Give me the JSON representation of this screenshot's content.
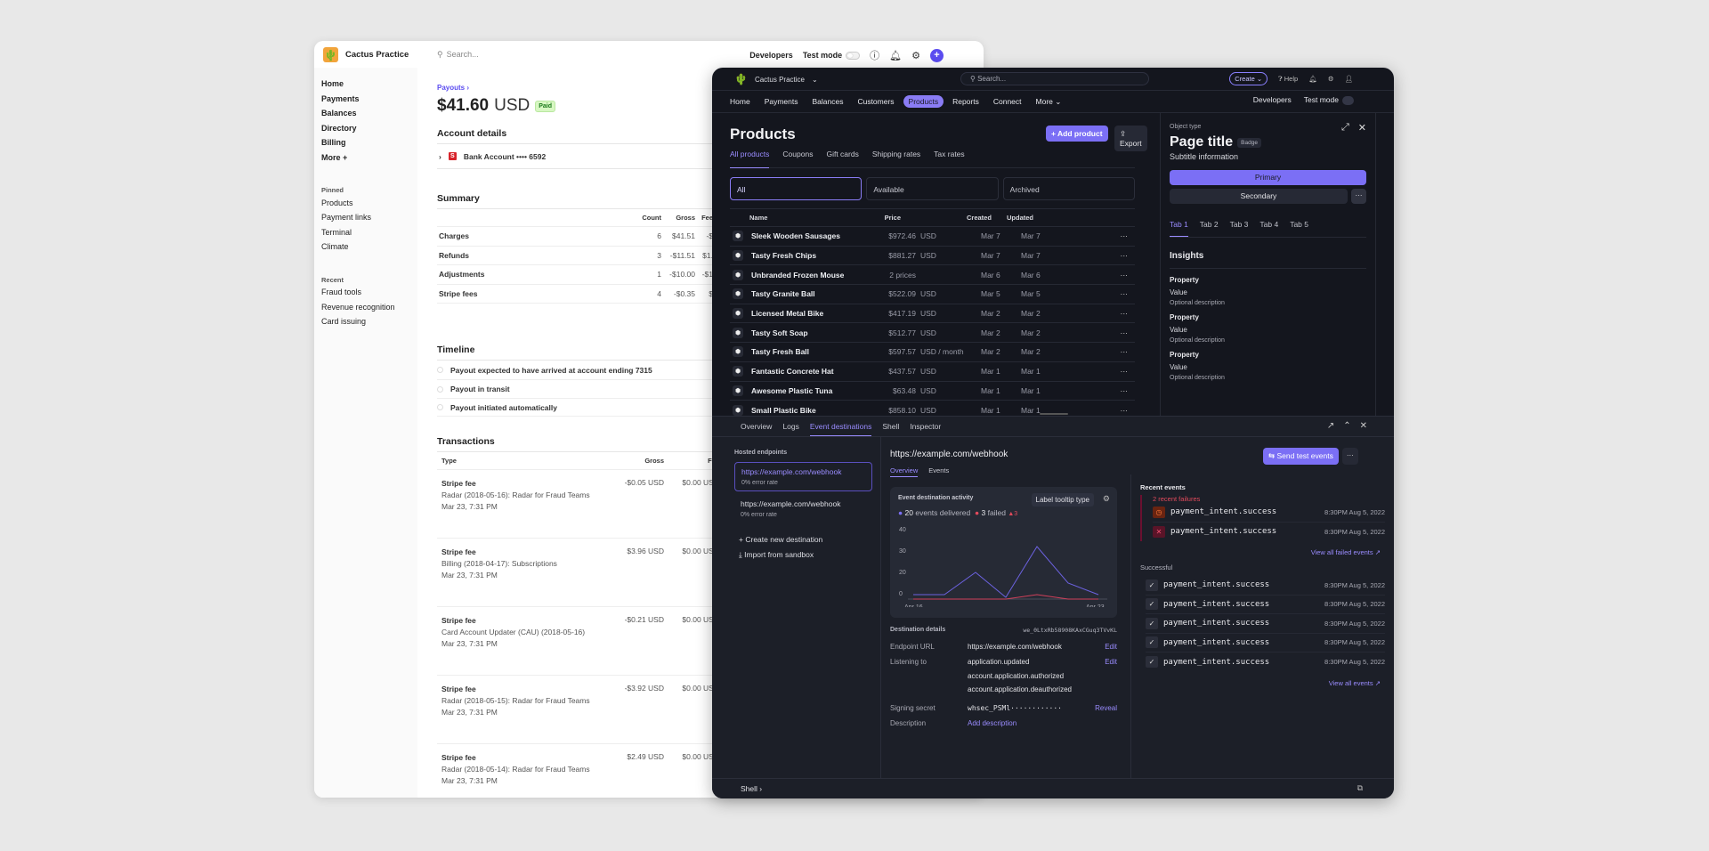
{
  "light": {
    "brand": "Cactus Practice",
    "search_placeholder": "Search...",
    "developers": "Developers",
    "test_mode": "Test mode",
    "nav": [
      "Home",
      "Payments",
      "Balances",
      "Directory",
      "Billing",
      "More +"
    ],
    "pinned_head": "Pinned",
    "pinned": [
      "Products",
      "Payment links",
      "Terminal",
      "Climate"
    ],
    "recent_head": "Recent",
    "recent": [
      "Fraud tools",
      "Revenue recognition",
      "Card issuing"
    ],
    "breadcrumb": "Payouts",
    "amount": "$41.60",
    "currency": "USD",
    "status": "Paid",
    "account_details": "Account details",
    "bank_account": "Bank Account •••• 6592",
    "summary": {
      "title": "Summary",
      "headers": [
        "Count",
        "Gross",
        "Fee"
      ],
      "rows": [
        {
          "label": "Charges",
          "count": "6",
          "gross": "$41.51",
          "fee": "-$"
        },
        {
          "label": "Refunds",
          "count": "3",
          "gross": "-$11.51",
          "fee": "$1."
        },
        {
          "label": "Adjustments",
          "count": "1",
          "gross": "-$10.00",
          "fee": "-$1"
        },
        {
          "label": "Stripe fees",
          "count": "4",
          "gross": "-$0.35",
          "fee": "$"
        }
      ]
    },
    "timeline": {
      "title": "Timeline",
      "items": [
        "Payout expected to have arrived at account ending 7315",
        "Payout in transit",
        "Payout initiated automatically"
      ]
    },
    "transactions": {
      "title": "Transactions",
      "headers": [
        "Type",
        "Gross",
        "Fee"
      ],
      "rows": [
        {
          "type": "Stripe fee",
          "desc": "Radar (2018-05-16): Radar for Fraud Teams",
          "date": "Mar 23, 7:31 PM",
          "gross": "-$0.05 USD",
          "fee": "$0.00 USD"
        },
        {
          "type": "Stripe fee",
          "desc": "Billing (2018-04-17): Subscriptions",
          "date": "Mar 23, 7:31 PM",
          "gross": "$3.96 USD",
          "fee": "$0.00 USD"
        },
        {
          "type": "Stripe fee",
          "desc": "Card Account Updater (CAU) (2018-05-16)",
          "date": "Mar 23, 7:31 PM",
          "gross": "-$0.21 USD",
          "fee": "$0.00 USD"
        },
        {
          "type": "Stripe fee",
          "desc": "Radar (2018-05-15): Radar for Fraud Teams",
          "date": "Mar 23, 7:31 PM",
          "gross": "-$3.92 USD",
          "fee": "$0.00 USD"
        },
        {
          "type": "Stripe fee",
          "desc": "Radar (2018-05-14): Radar for Fraud Teams",
          "date": "Mar 23, 7:31 PM",
          "gross": "$2.49 USD",
          "fee": "$0.00 USD"
        }
      ]
    }
  },
  "dark": {
    "brand": "Cactus Practice",
    "search_placeholder": "Search...",
    "create": "Create",
    "help": "Help",
    "nav": [
      "Home",
      "Payments",
      "Balances",
      "Customers",
      "Products",
      "Reports",
      "Connect",
      "More"
    ],
    "developers": "Developers",
    "test_mode": "Test mode",
    "products": {
      "title": "Products",
      "add": "Add product",
      "export": "Export",
      "tabs": [
        "All products",
        "Coupons",
        "Gift cards",
        "Shipping rates",
        "Tax rates"
      ],
      "filters": [
        "All",
        "Available",
        "Archived"
      ],
      "headers": [
        "Name",
        "Price",
        "Created",
        "Updated"
      ],
      "rows": [
        {
          "name": "Sleek Wooden Sausages",
          "price": "$972.46",
          "unit": "USD",
          "created": "Mar 7",
          "updated": "Mar 7"
        },
        {
          "name": "Tasty Fresh Chips",
          "price": "$881.27",
          "unit": "USD",
          "created": "Mar 7",
          "updated": "Mar 7"
        },
        {
          "name": "Unbranded Frozen Mouse",
          "price": "2 prices",
          "unit": "",
          "created": "Mar 6",
          "updated": "Mar 6"
        },
        {
          "name": "Tasty Granite Ball",
          "price": "$522.09",
          "unit": "USD",
          "created": "Mar 5",
          "updated": "Mar 5"
        },
        {
          "name": "Licensed Metal Bike",
          "price": "$417.19",
          "unit": "USD",
          "created": "Mar 2",
          "updated": "Mar 2"
        },
        {
          "name": "Tasty Soft Soap",
          "price": "$512.77",
          "unit": "USD",
          "created": "Mar 2",
          "updated": "Mar 2"
        },
        {
          "name": "Tasty Fresh Ball",
          "price": "$597.57",
          "unit": "USD / month",
          "created": "Mar 2",
          "updated": "Mar 2"
        },
        {
          "name": "Fantastic Concrete Hat",
          "price": "$437.57",
          "unit": "USD",
          "created": "Mar 1",
          "updated": "Mar 1"
        },
        {
          "name": "Awesome Plastic Tuna",
          "price": "$63.48",
          "unit": "USD",
          "created": "Mar 1",
          "updated": "Mar 1"
        },
        {
          "name": "Small Plastic Bike",
          "price": "$858.10",
          "unit": "USD",
          "created": "Mar 1",
          "updated": "Mar 1"
        }
      ]
    },
    "drawer": {
      "object_type": "Object type",
      "title": "Page title",
      "badge": "Badge",
      "subtitle": "Subtitle information",
      "primary": "Primary",
      "secondary": "Secondary",
      "tabs": [
        "Tab 1",
        "Tab 2",
        "Tab  3",
        "Tab 4",
        "Tab 5"
      ],
      "insights": "Insights",
      "properties": [
        {
          "k": "Property",
          "v": "Value",
          "d": "Optional description"
        },
        {
          "k": "Property",
          "v": "Value",
          "d": "Optional description"
        },
        {
          "k": "Property",
          "v": "Value",
          "d": "Optional description"
        }
      ]
    },
    "panel": {
      "tabs": [
        "Overview",
        "Logs",
        "Event destinations",
        "Shell",
        "Inspector"
      ],
      "hosted_head": "Hosted endpoints",
      "endpoints": [
        {
          "url": "https://example.com/webhook",
          "rate": "0% error rate"
        },
        {
          "url": "https://example.com/webhook",
          "rate": "0% error rate"
        }
      ],
      "create_dest": "Create new destination",
      "import": "Import from sandbox",
      "ep_title": "https://example.com/webhook",
      "send_test": "Send test events",
      "ep_tabs": [
        "Overview",
        "Events"
      ],
      "chart_title": "Event destination activity",
      "tooltip_label": "Label tooltip type",
      "delivered_count": "20",
      "delivered_label": "events delivered",
      "failed_count": "3",
      "failed_label": "failed",
      "failed_delta": "▲3",
      "y_ticks": [
        "40",
        "30",
        "20",
        "0"
      ],
      "x_start": "Apr 16",
      "x_end": "Apr 23",
      "details_head": "Destination details",
      "dest_id": "we_0LtxRb58908KAxCGuq3TVvKL",
      "endpoint_url_k": "Endpoint URL",
      "endpoint_url_v": "https://example.com/webhook",
      "listening_k": "Listening to",
      "listening_v": [
        "application.updated",
        "account.application.authorized",
        "account.application.deauthorized"
      ],
      "secret_k": "Signing secret",
      "secret_v": "whsec_PSMl············",
      "reveal": "Reveal",
      "desc_k": "Description",
      "desc_v": "Add description",
      "edit": "Edit",
      "recent_head": "Recent events",
      "failures_head": "2 recent failures",
      "failed_events": [
        {
          "name": "payment_intent.success",
          "ts": "8:30PM Aug 5, 2022",
          "kind": "warn"
        },
        {
          "name": "payment_intent.success",
          "ts": "8:30PM Aug 5, 2022",
          "kind": "err"
        }
      ],
      "view_failed": "View all failed events ↗",
      "successful_head": "Successful",
      "success_events": [
        {
          "name": "payment_intent.success",
          "ts": "8:30PM Aug 5, 2022"
        },
        {
          "name": "payment_intent.success",
          "ts": "8:30PM Aug 5, 2022"
        },
        {
          "name": "payment_intent.success",
          "ts": "8:30PM Aug 5, 2022"
        },
        {
          "name": "payment_intent.success",
          "ts": "8:30PM Aug 5, 2022"
        },
        {
          "name": "payment_intent.success",
          "ts": "8:30PM Aug 5, 2022"
        }
      ],
      "view_all": "View all events ↗",
      "footer": "Shell"
    },
    "colors": {
      "accent": "#7b6ff5",
      "failed": "#e24a5c",
      "bg": "#14161e"
    }
  }
}
